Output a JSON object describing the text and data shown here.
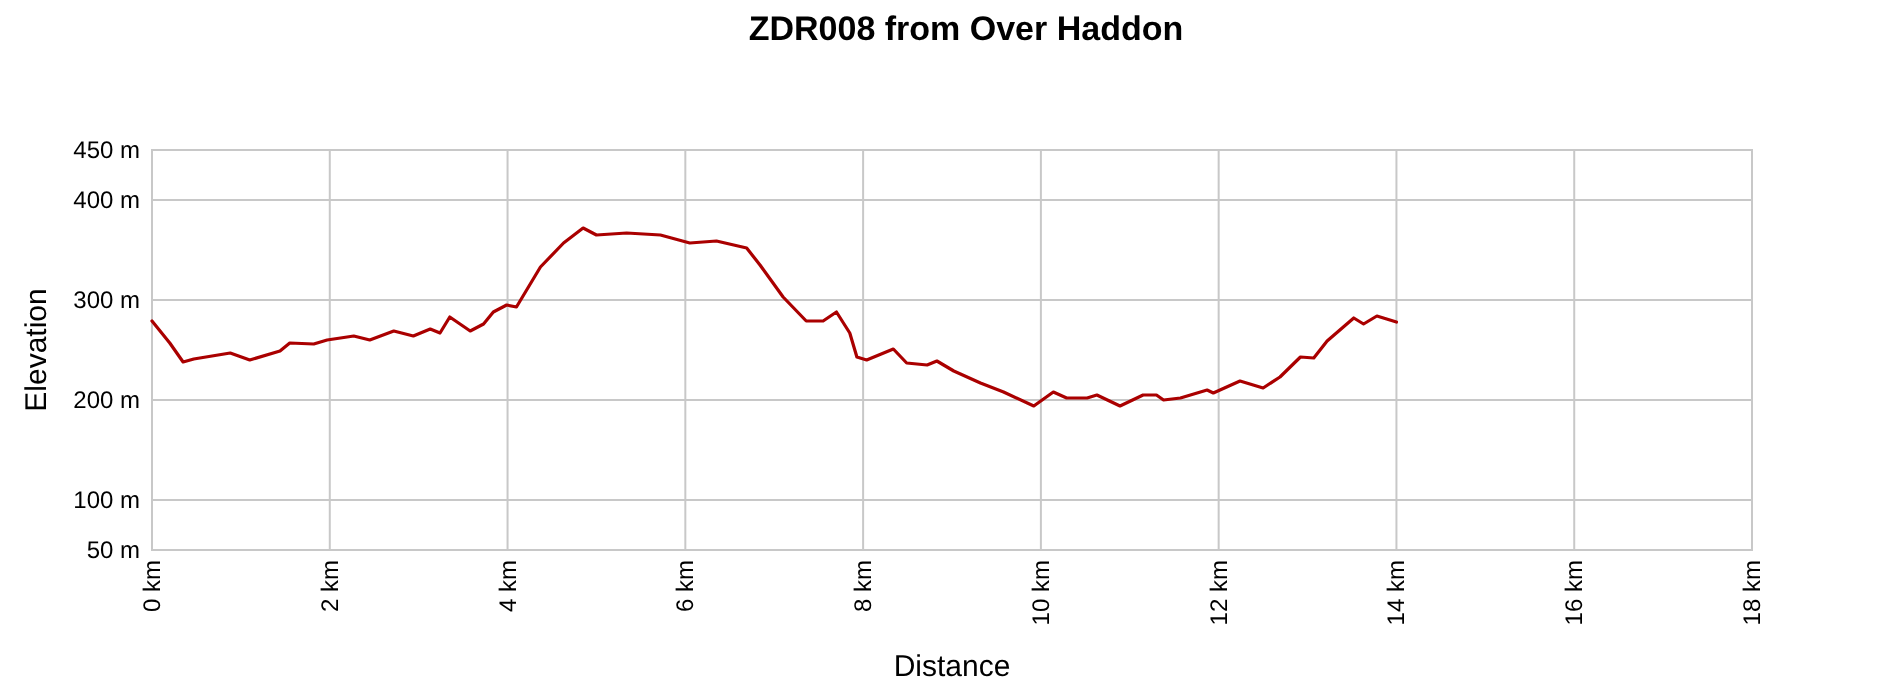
{
  "chart_data": {
    "type": "line",
    "title": "ZDR008 from Over Haddon",
    "xlabel": "Distance",
    "ylabel": "Elevation",
    "xlim": [
      0,
      18
    ],
    "ylim": [
      50,
      450
    ],
    "xticks": [
      {
        "value": 0,
        "label": "0 km"
      },
      {
        "value": 2,
        "label": "2 km"
      },
      {
        "value": 4,
        "label": "4 km"
      },
      {
        "value": 6,
        "label": "6 km"
      },
      {
        "value": 8,
        "label": "8 km"
      },
      {
        "value": 10,
        "label": "10 km"
      },
      {
        "value": 12,
        "label": "12 km"
      },
      {
        "value": 14,
        "label": "14 km"
      },
      {
        "value": 16,
        "label": "16 km"
      },
      {
        "value": 18,
        "label": "18 km"
      }
    ],
    "yticks": [
      {
        "value": 50,
        "label": "50 m"
      },
      {
        "value": 100,
        "label": "100 m"
      },
      {
        "value": 200,
        "label": "200 m"
      },
      {
        "value": 300,
        "label": "300 m"
      },
      {
        "value": 400,
        "label": "400 m"
      },
      {
        "value": 450,
        "label": "450 m"
      }
    ],
    "grid": true,
    "marker": "none",
    "line_style": "solid",
    "series": [
      {
        "color": "#aa0000",
        "x": [
          0,
          0.2,
          0.35,
          0.47,
          0.88,
          1.1,
          1.44,
          1.55,
          1.82,
          1.97,
          2.27,
          2.45,
          2.72,
          2.94,
          3.13,
          3.24,
          3.35,
          3.58,
          3.73,
          3.84,
          3.99,
          4.1,
          4.37,
          4.63,
          4.85,
          5.0,
          5.34,
          5.72,
          6.05,
          6.35,
          6.69,
          6.84,
          7.1,
          7.36,
          7.55,
          7.7,
          7.85,
          7.93,
          8.04,
          8.34,
          8.49,
          8.72,
          8.83,
          9.02,
          9.32,
          9.58,
          9.92,
          10.14,
          10.29,
          10.52,
          10.63,
          10.89,
          11.15,
          11.3,
          11.38,
          11.57,
          11.87,
          11.94,
          12.24,
          12.5,
          12.69,
          12.92,
          13.07,
          13.22,
          13.52,
          13.63,
          13.78,
          14.0
        ],
        "values": [
          279,
          257,
          238,
          241,
          247,
          240,
          249,
          257,
          256,
          260,
          264,
          260,
          269,
          264,
          271,
          267,
          283,
          269,
          276,
          288,
          295,
          293,
          333,
          357,
          372,
          365,
          367,
          365,
          357,
          359,
          352,
          335,
          303,
          279,
          279,
          288,
          267,
          243,
          240,
          251,
          237,
          235,
          239,
          229,
          217,
          208,
          194,
          208,
          202,
          202,
          205,
          194,
          205,
          205,
          200,
          202,
          210,
          207,
          219,
          212,
          223,
          243,
          242,
          259,
          282,
          276,
          284,
          278
        ]
      }
    ]
  }
}
